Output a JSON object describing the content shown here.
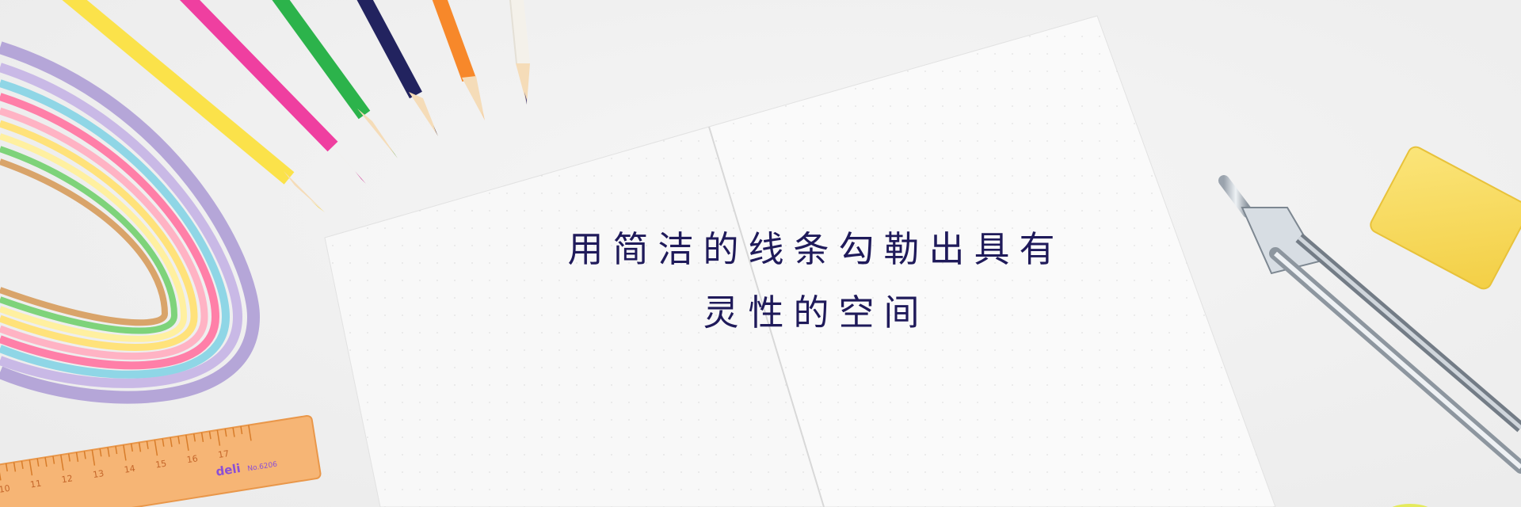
{
  "banner": {
    "headline_line1": "用简洁的线条勾勒出具有",
    "headline_line2": "灵性的空间"
  },
  "ruler": {
    "brand": "deli",
    "model": "No.6206",
    "ticks": [
      "10",
      "11",
      "12",
      "13",
      "14",
      "15",
      "16",
      "17"
    ]
  },
  "colors": {
    "text": "#1f1a5a",
    "background": "#f1f1f1"
  }
}
